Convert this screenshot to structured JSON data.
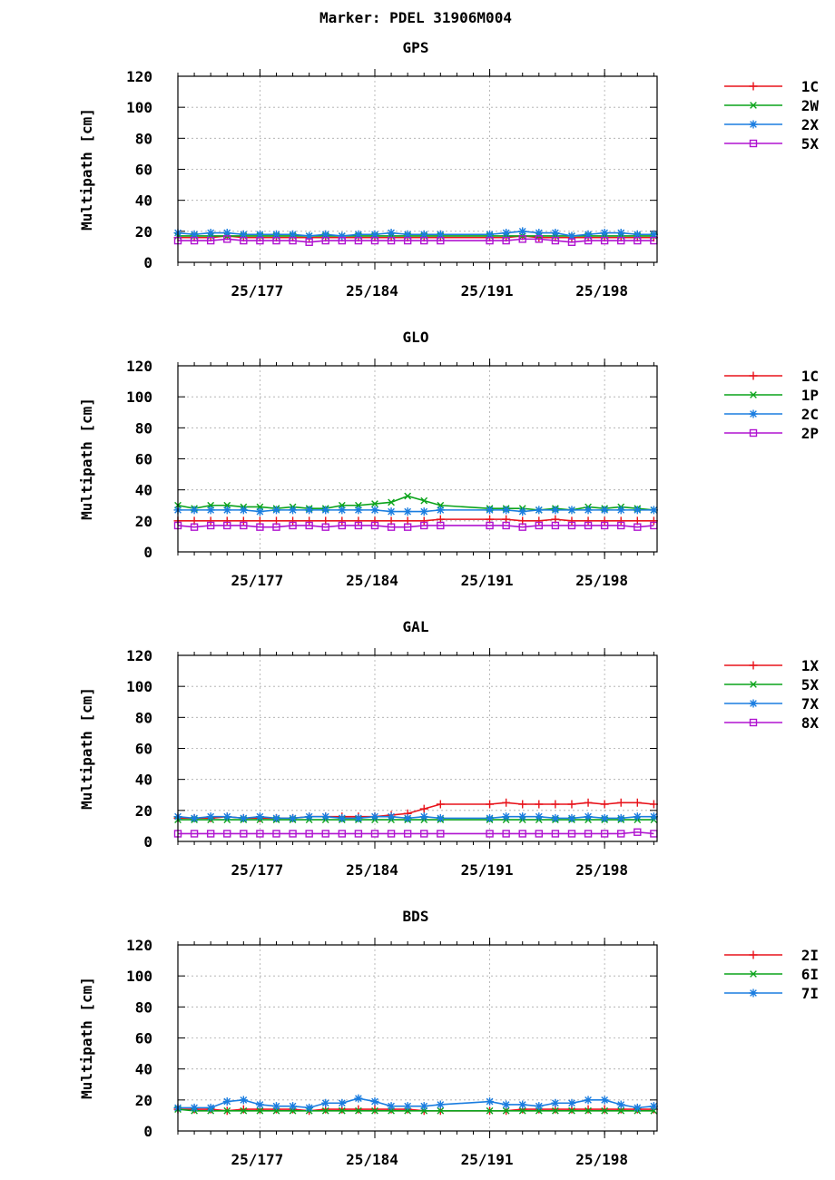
{
  "figure_title": "Marker: PDEL 31906M004",
  "colors": {
    "red": "#e8141c",
    "green": "#0aa31a",
    "blue": "#1a7de0",
    "magenta": "#b014d0"
  },
  "chart_data": [
    {
      "type": "line",
      "title": "GPS",
      "ylabel": "Multipath [cm]",
      "xlabel": "",
      "ylim": [
        0,
        120
      ],
      "yticks": [
        0,
        20,
        40,
        60,
        80,
        100,
        120
      ],
      "xticklabels": [
        "25/177",
        "25/184",
        "25/191",
        "25/198"
      ],
      "xlim": [
        172,
        201.2
      ],
      "xticks": [
        177,
        184,
        191,
        198
      ],
      "grid": true,
      "legend_position": "right",
      "x": [
        172,
        173,
        174,
        175,
        176,
        177,
        178,
        179,
        180,
        181,
        182,
        183,
        184,
        185,
        186,
        187,
        188,
        191,
        192,
        193,
        194,
        195,
        196,
        197,
        198,
        199,
        200,
        201
      ],
      "series": [
        {
          "name": "1C",
          "color": "#e8141c",
          "marker": "plus",
          "values": [
            16,
            16,
            16,
            17,
            16,
            16,
            16,
            16,
            16,
            16,
            16,
            16,
            16,
            16,
            16,
            16,
            16,
            16,
            16,
            17,
            16,
            16,
            16,
            16,
            16,
            16,
            16,
            16
          ]
        },
        {
          "name": "2W",
          "color": "#0aa31a",
          "marker": "x",
          "values": [
            17,
            17,
            17,
            17,
            17,
            17,
            17,
            17,
            17,
            17,
            17,
            17,
            17,
            17,
            17,
            17,
            17,
            17,
            17,
            17,
            17,
            17,
            17,
            17,
            17,
            17,
            17,
            17
          ]
        },
        {
          "name": "2X",
          "color": "#1a7de0",
          "marker": "star",
          "values": [
            19,
            18,
            19,
            19,
            18,
            18,
            18,
            18,
            17,
            18,
            17,
            18,
            18,
            19,
            18,
            18,
            18,
            18,
            19,
            20,
            19,
            19,
            17,
            18,
            19,
            19,
            18,
            18
          ]
        },
        {
          "name": "5X",
          "color": "#b014d0",
          "marker": "square",
          "values": [
            14,
            14,
            14,
            15,
            14,
            14,
            14,
            14,
            13,
            14,
            14,
            14,
            14,
            14,
            14,
            14,
            14,
            14,
            14,
            15,
            15,
            14,
            13,
            14,
            14,
            14,
            14,
            14
          ]
        }
      ]
    },
    {
      "type": "line",
      "title": "GLO",
      "ylabel": "Multipath [cm]",
      "xlabel": "",
      "ylim": [
        0,
        120
      ],
      "yticks": [
        0,
        20,
        40,
        60,
        80,
        100,
        120
      ],
      "xticklabels": [
        "25/177",
        "25/184",
        "25/191",
        "25/198"
      ],
      "xlim": [
        172,
        201.2
      ],
      "xticks": [
        177,
        184,
        191,
        198
      ],
      "grid": true,
      "legend_position": "right",
      "x": [
        172,
        173,
        174,
        175,
        176,
        177,
        178,
        179,
        180,
        181,
        182,
        183,
        184,
        185,
        186,
        187,
        188,
        191,
        192,
        193,
        194,
        195,
        196,
        197,
        198,
        199,
        200,
        201
      ],
      "series": [
        {
          "name": "1C",
          "color": "#e8141c",
          "marker": "plus",
          "values": [
            20,
            20,
            20,
            20,
            20,
            20,
            20,
            20,
            20,
            20,
            20,
            20,
            20,
            20,
            20,
            20,
            21,
            21,
            21,
            20,
            20,
            21,
            20,
            20,
            20,
            20,
            20,
            20
          ]
        },
        {
          "name": "1P",
          "color": "#0aa31a",
          "marker": "x",
          "values": [
            30,
            28,
            30,
            30,
            29,
            29,
            28,
            29,
            28,
            28,
            30,
            30,
            31,
            32,
            36,
            33,
            30,
            28,
            28,
            28,
            27,
            28,
            27,
            29,
            28,
            29,
            28,
            27
          ]
        },
        {
          "name": "2C",
          "color": "#1a7de0",
          "marker": "star",
          "values": [
            27,
            27,
            27,
            27,
            27,
            26,
            27,
            27,
            27,
            27,
            27,
            27,
            27,
            26,
            26,
            26,
            27,
            27,
            27,
            26,
            27,
            27,
            27,
            27,
            27,
            27,
            27,
            27
          ]
        },
        {
          "name": "2P",
          "color": "#b014d0",
          "marker": "square",
          "values": [
            17,
            16,
            17,
            17,
            17,
            16,
            16,
            17,
            17,
            16,
            17,
            17,
            17,
            16,
            16,
            17,
            17,
            17,
            17,
            16,
            17,
            17,
            17,
            17,
            17,
            17,
            16,
            17
          ]
        }
      ]
    },
    {
      "type": "line",
      "title": "GAL",
      "ylabel": "Multipath [cm]",
      "xlabel": "",
      "ylim": [
        0,
        120
      ],
      "yticks": [
        0,
        20,
        40,
        60,
        80,
        100,
        120
      ],
      "xticklabels": [
        "25/177",
        "25/184",
        "25/191",
        "25/198"
      ],
      "xlim": [
        172,
        201.2
      ],
      "xticks": [
        177,
        184,
        191,
        198
      ],
      "grid": true,
      "legend_position": "right",
      "x": [
        172,
        173,
        174,
        175,
        176,
        177,
        178,
        179,
        180,
        181,
        182,
        183,
        184,
        185,
        186,
        187,
        188,
        191,
        192,
        193,
        194,
        195,
        196,
        197,
        198,
        199,
        200,
        201
      ],
      "series": [
        {
          "name": "1X",
          "color": "#e8141c",
          "marker": "plus",
          "values": [
            15,
            15,
            15,
            16,
            15,
            15,
            15,
            15,
            16,
            16,
            16,
            16,
            16,
            17,
            18,
            21,
            24,
            24,
            25,
            24,
            24,
            24,
            24,
            25,
            24,
            25,
            25,
            24
          ]
        },
        {
          "name": "5X",
          "color": "#0aa31a",
          "marker": "x",
          "values": [
            14,
            14,
            14,
            14,
            14,
            14,
            14,
            14,
            14,
            14,
            14,
            14,
            14,
            14,
            14,
            14,
            14,
            14,
            14,
            14,
            14,
            14,
            14,
            14,
            14,
            14,
            14,
            14
          ]
        },
        {
          "name": "7X",
          "color": "#1a7de0",
          "marker": "star",
          "values": [
            16,
            15,
            16,
            16,
            15,
            16,
            15,
            15,
            16,
            16,
            15,
            15,
            16,
            16,
            15,
            16,
            15,
            15,
            16,
            16,
            16,
            15,
            15,
            16,
            15,
            15,
            16,
            16
          ]
        },
        {
          "name": "8X",
          "color": "#b014d0",
          "marker": "square",
          "values": [
            5,
            5,
            5,
            5,
            5,
            5,
            5,
            5,
            5,
            5,
            5,
            5,
            5,
            5,
            5,
            5,
            5,
            5,
            5,
            5,
            5,
            5,
            5,
            5,
            5,
            5,
            6,
            5
          ]
        }
      ]
    },
    {
      "type": "line",
      "title": "BDS",
      "ylabel": "Multipath [cm]",
      "xlabel": "",
      "ylim": [
        0,
        120
      ],
      "yticks": [
        0,
        20,
        40,
        60,
        80,
        100,
        120
      ],
      "xticklabels": [
        "25/177",
        "25/184",
        "25/191",
        "25/198"
      ],
      "xlim": [
        172,
        201.2
      ],
      "xticks": [
        177,
        184,
        191,
        198
      ],
      "grid": true,
      "legend_position": "right",
      "x": [
        172,
        173,
        174,
        175,
        176,
        177,
        178,
        179,
        180,
        181,
        182,
        183,
        184,
        185,
        186,
        187,
        188,
        191,
        192,
        193,
        194,
        195,
        196,
        197,
        198,
        199,
        200,
        201
      ],
      "series": [
        {
          "name": "2I",
          "color": "#e8141c",
          "marker": "plus",
          "values": [
            14,
            14,
            14,
            13,
            14,
            14,
            14,
            14,
            13,
            14,
            14,
            14,
            14,
            14,
            14,
            13,
            13,
            13,
            13,
            14,
            14,
            14,
            14,
            14,
            14,
            14,
            14,
            14
          ]
        },
        {
          "name": "6I",
          "color": "#0aa31a",
          "marker": "x",
          "values": [
            14,
            13,
            13,
            13,
            13,
            13,
            13,
            13,
            13,
            13,
            13,
            13,
            13,
            13,
            13,
            13,
            13,
            13,
            13,
            13,
            13,
            13,
            13,
            13,
            13,
            13,
            13,
            13
          ]
        },
        {
          "name": "7I",
          "color": "#1a7de0",
          "marker": "star",
          "values": [
            15,
            15,
            15,
            19,
            20,
            17,
            16,
            16,
            15,
            18,
            18,
            21,
            19,
            16,
            16,
            16,
            17,
            19,
            17,
            17,
            16,
            18,
            18,
            20,
            20,
            17,
            15,
            16
          ]
        }
      ]
    }
  ]
}
